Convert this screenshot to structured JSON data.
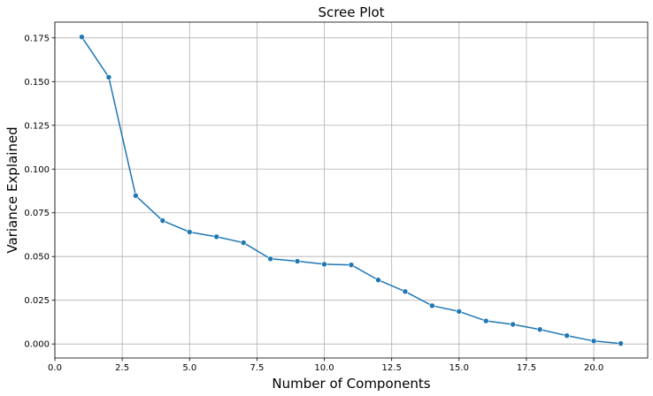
{
  "chart_data": {
    "type": "line",
    "title": "Scree Plot",
    "xlabel": "Number of Components",
    "ylabel": "Variance Explained",
    "xlim": [
      0,
      22
    ],
    "ylim": [
      -0.008,
      0.184
    ],
    "xticks": [
      0,
      2.5,
      5,
      7.5,
      10,
      12.5,
      15,
      17.5,
      20
    ],
    "xtick_labels": [
      "0.0",
      "2.5",
      "5.0",
      "7.5",
      "10.0",
      "12.5",
      "15.0",
      "17.5",
      "20.0"
    ],
    "yticks": [
      0,
      0.025,
      0.05,
      0.075,
      0.1,
      0.125,
      0.15,
      0.175
    ],
    "ytick_labels": [
      "0.000",
      "0.025",
      "0.050",
      "0.075",
      "0.100",
      "0.125",
      "0.150",
      "0.175"
    ],
    "grid": true,
    "series": [
      {
        "name": "variance_explained",
        "color": "#1f77b4",
        "x": [
          1,
          2,
          3,
          4,
          5,
          6,
          7,
          8,
          9,
          10,
          11,
          12,
          13,
          14,
          15,
          16,
          17,
          18,
          19,
          20,
          21
        ],
        "y": [
          0.1755,
          0.1525,
          0.0848,
          0.0705,
          0.064,
          0.0613,
          0.0579,
          0.0487,
          0.0473,
          0.0456,
          0.0452,
          0.0366,
          0.03,
          0.0219,
          0.0186,
          0.0132,
          0.0112,
          0.0083,
          0.0048,
          0.0017,
          0.0003
        ]
      }
    ]
  }
}
